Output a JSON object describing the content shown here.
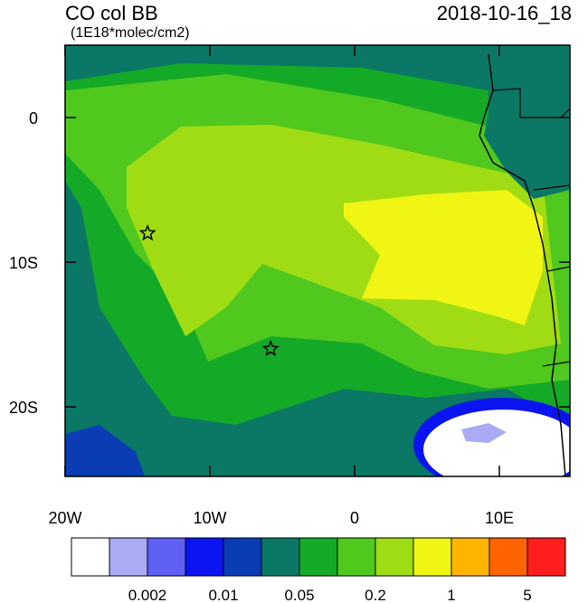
{
  "chart_data": {
    "type": "map",
    "title": "CO col BB",
    "subtitle": "(1E18*molec/cm2)",
    "date": "2018-10-16_18",
    "xlim": [
      -20,
      14.875
    ],
    "ylim": [
      -24.8125,
      5
    ],
    "xticks": [
      {
        "value": -20,
        "label": "20W"
      },
      {
        "value": -10,
        "label": "10W"
      },
      0,
      {
        "value": 10,
        "label": "10E"
      }
    ],
    "yticks": [
      0,
      {
        "value": -10,
        "label": "10S"
      },
      {
        "value": -20,
        "label": "20S"
      }
    ],
    "markers": [
      {
        "lon": -14.3,
        "lat": -8.0
      },
      {
        "lon": -5.8,
        "lat": -16.0
      }
    ],
    "colorbar": {
      "colors": [
        "#ffffff",
        "#aaaaf5",
        "#6060f5",
        "#0a14f0",
        "#0a3cb4",
        "#0a7864",
        "#14aa28",
        "#50c81e",
        "#a0dc14",
        "#f0f514",
        "#ffb400",
        "#ff6400",
        "#ff1e1e"
      ],
      "labels": [
        "0.002",
        "0.01",
        "0.05",
        "0.2",
        "1",
        "5"
      ]
    }
  }
}
